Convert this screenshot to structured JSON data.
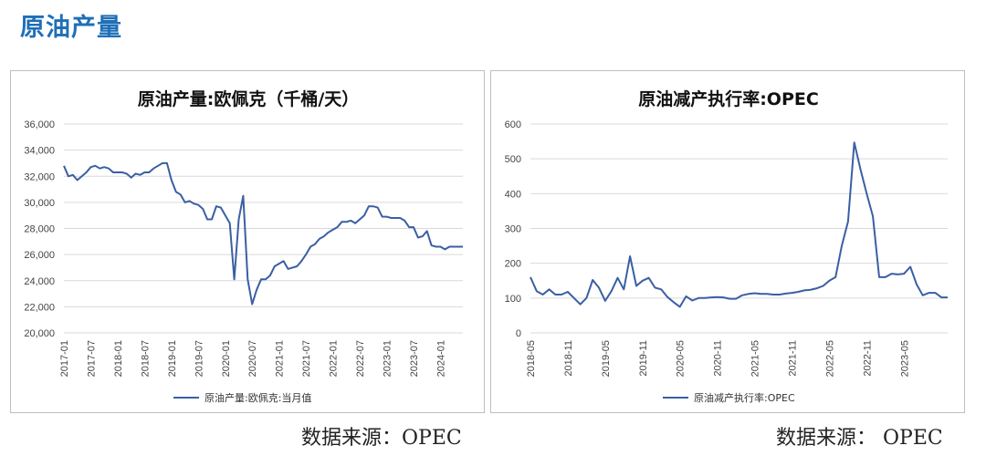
{
  "page": {
    "title": "原油产量",
    "source_left": "数据来源：OPEC",
    "source_right": "数据来源：  OPEC"
  },
  "colors": {
    "title": "#1F6FB8",
    "line": "#3A5FA4",
    "grid": "#d9d9d9"
  },
  "chart_data": [
    {
      "type": "line",
      "title": "原油产量:欧佩克（千桶/天）",
      "legend": "原油产量:欧佩克:当月值",
      "legend_position": "bottom",
      "grid": true,
      "ylim": [
        20000,
        36000
      ],
      "yticks": [
        20000,
        22000,
        24000,
        26000,
        28000,
        30000,
        32000,
        34000,
        36000
      ],
      "ytick_labels": [
        "20,000",
        "22,000",
        "24,000",
        "26,000",
        "28,000",
        "30,000",
        "32,000",
        "34,000",
        "36,000"
      ],
      "x_start": "2017-01",
      "xtick_labels": [
        "2017-01",
        "2017-07",
        "2018-01",
        "2018-07",
        "2019-01",
        "2019-07",
        "2020-01",
        "2020-07",
        "2021-01",
        "2021-07",
        "2022-01",
        "2022-07",
        "2023-01",
        "2023-07",
        "2024-01"
      ],
      "values": [
        32800,
        32000,
        32100,
        31700,
        32000,
        32300,
        32700,
        32800,
        32600,
        32700,
        32600,
        32300,
        32300,
        32300,
        32200,
        31900,
        32200,
        32100,
        32300,
        32300,
        32600,
        32800,
        33000,
        33000,
        31700,
        30800,
        30600,
        30000,
        30100,
        29900,
        29800,
        29500,
        28700,
        28700,
        29700,
        29600,
        29000,
        28400,
        24100,
        28700,
        30500,
        24100,
        22200,
        23300,
        24100,
        24100,
        24400,
        25100,
        25300,
        25500,
        24900,
        25000,
        25100,
        25500,
        26000,
        26600,
        26800,
        27200,
        27400,
        27700,
        27900,
        28100,
        28500,
        28500,
        28600,
        28400,
        28700,
        29000,
        29700,
        29700,
        29600,
        28900,
        28900,
        28800,
        28800,
        28800,
        28600,
        28100,
        28100,
        27300,
        27400,
        27800,
        26700,
        26600,
        26600,
        26400,
        26600,
        26600,
        26600,
        26600
      ]
    },
    {
      "type": "line",
      "title": "原油减产执行率:OPEC",
      "legend": "原油减产执行率:OPEC",
      "legend_position": "bottom",
      "grid": true,
      "ylim": [
        0,
        600
      ],
      "yticks": [
        0,
        100,
        200,
        300,
        400,
        500,
        600
      ],
      "ytick_labels": [
        "0",
        "100",
        "200",
        "300",
        "400",
        "500",
        "600"
      ],
      "x_start": "2018-05",
      "xtick_labels": [
        "2018-05",
        "2018-11",
        "2019-05",
        "2019-11",
        "2020-05",
        "2020-11",
        "2021-05",
        "2021-11",
        "2022-05",
        "2022-11",
        "2023-05"
      ],
      "values": [
        160,
        120,
        110,
        125,
        110,
        110,
        118,
        100,
        82,
        100,
        152,
        130,
        92,
        120,
        158,
        125,
        220,
        135,
        150,
        158,
        130,
        125,
        103,
        88,
        75,
        105,
        93,
        100,
        100,
        102,
        103,
        102,
        98,
        98,
        108,
        112,
        114,
        112,
        112,
        110,
        110,
        113,
        115,
        118,
        122,
        124,
        128,
        135,
        150,
        160,
        250,
        320,
        547,
        470,
        400,
        335,
        160,
        160,
        170,
        168,
        170,
        190,
        140,
        108,
        115,
        115,
        102,
        102
      ]
    }
  ]
}
